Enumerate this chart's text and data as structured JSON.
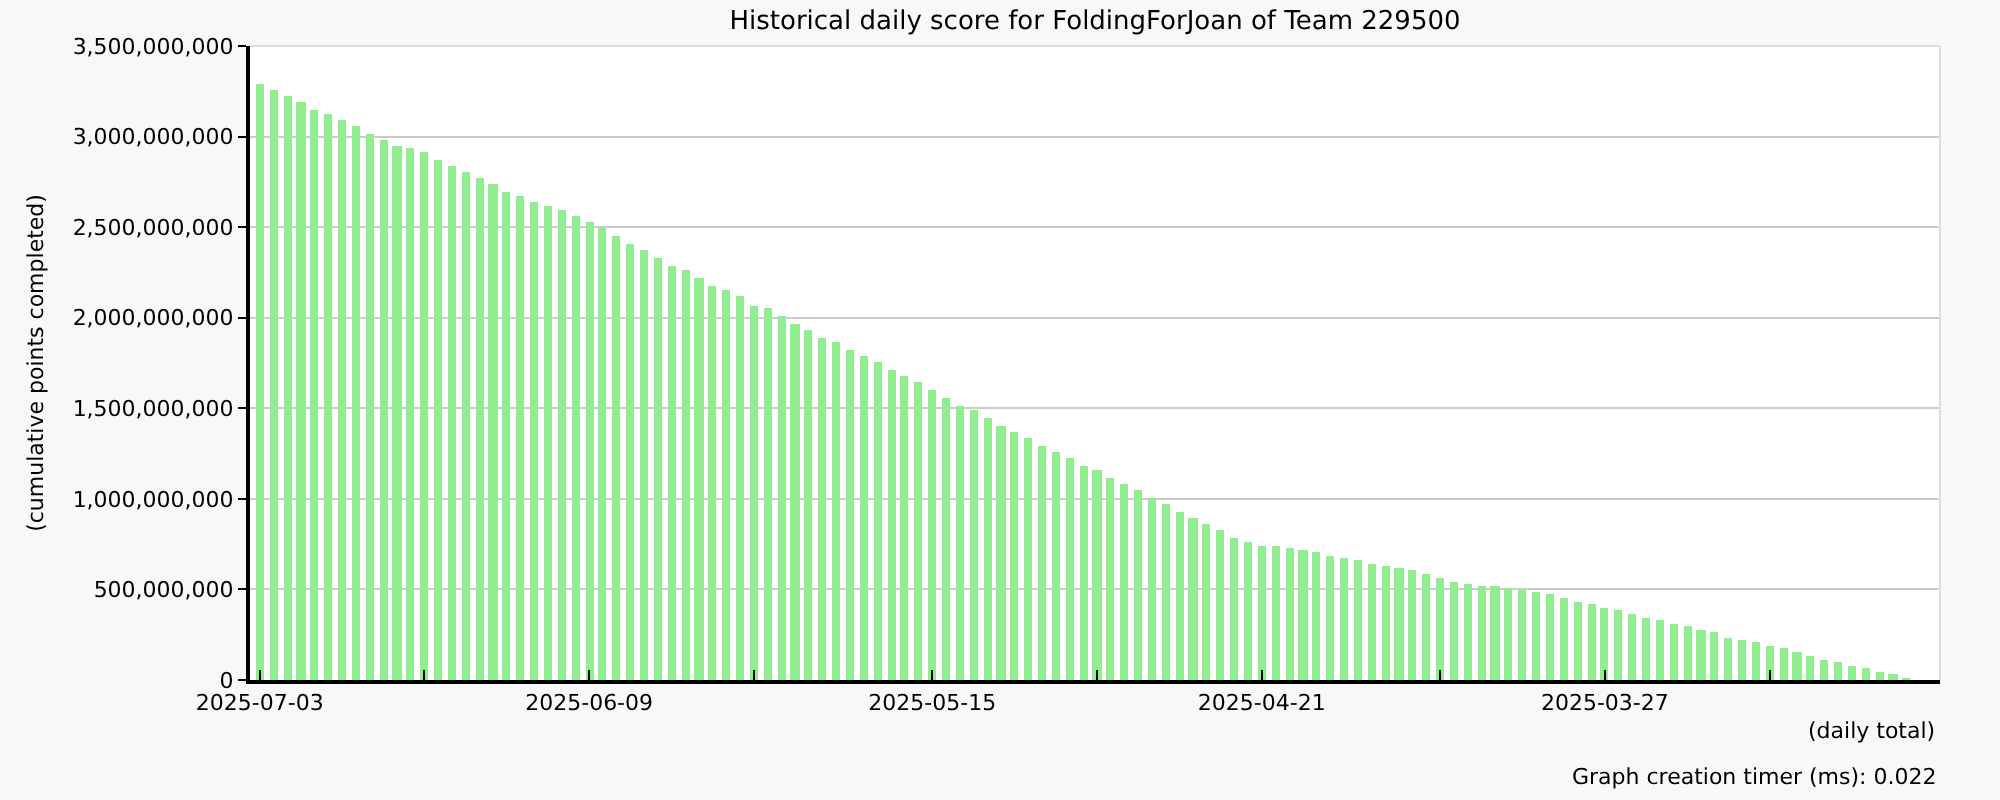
{
  "chart_data": {
    "type": "bar",
    "title": "Historical daily score for FoldingForJoan of Team 229500",
    "xlabel": "(daily total)",
    "ylabel": "(cumulative points completed)",
    "annotations": [
      "Graph creation timer (ms): 0.022"
    ],
    "x": [
      "2025-07-03",
      "2025-07-02",
      "2025-07-01",
      "2025-06-30",
      "2025-06-29",
      "2025-06-28",
      "2025-06-27",
      "2025-06-26",
      "2025-06-25",
      "2025-06-24",
      "2025-06-23",
      "2025-06-22",
      "2025-06-21",
      "2025-06-20",
      "2025-06-19",
      "2025-06-18",
      "2025-06-17",
      "2025-06-16",
      "2025-06-15",
      "2025-06-14",
      "2025-06-13",
      "2025-06-12",
      "2025-06-11",
      "2025-06-10",
      "2025-06-09",
      "2025-06-08",
      "2025-06-07",
      "2025-06-06",
      "2025-06-05",
      "2025-06-04",
      "2025-06-03",
      "2025-06-02",
      "2025-06-01",
      "2025-05-31",
      "2025-05-30",
      "2025-05-29",
      "2025-05-28",
      "2025-05-27",
      "2025-05-26",
      "2025-05-25",
      "2025-05-24",
      "2025-05-23",
      "2025-05-22",
      "2025-05-21",
      "2025-05-20",
      "2025-05-19",
      "2025-05-18",
      "2025-05-17",
      "2025-05-16",
      "2025-05-15",
      "2025-05-14",
      "2025-05-13",
      "2025-05-12",
      "2025-05-11",
      "2025-05-10",
      "2025-05-09",
      "2025-05-08",
      "2025-05-07",
      "2025-05-06",
      "2025-05-05",
      "2025-05-04",
      "2025-05-03",
      "2025-05-02",
      "2025-05-01",
      "2025-04-30",
      "2025-04-29",
      "2025-04-28",
      "2025-04-27",
      "2025-04-26",
      "2025-04-25",
      "2025-04-24",
      "2025-04-23",
      "2025-04-22",
      "2025-04-21",
      "2025-04-20",
      "2025-04-19",
      "2025-04-18",
      "2025-04-17",
      "2025-04-16",
      "2025-04-15",
      "2025-04-14",
      "2025-04-13",
      "2025-04-12",
      "2025-04-11",
      "2025-04-10",
      "2025-04-09",
      "2025-04-08",
      "2025-04-07",
      "2025-04-06",
      "2025-04-05",
      "2025-04-04",
      "2025-04-03",
      "2025-04-02",
      "2025-04-01",
      "2025-03-31",
      "2025-03-30",
      "2025-03-29",
      "2025-03-28",
      "2025-03-27",
      "2025-03-26",
      "2025-03-25",
      "2025-03-24",
      "2025-03-23",
      "2025-03-22",
      "2025-03-21",
      "2025-03-20",
      "2025-03-19",
      "2025-03-18",
      "2025-03-17",
      "2025-03-16",
      "2025-03-15",
      "2025-03-14",
      "2025-03-13",
      "2025-03-12",
      "2025-03-11",
      "2025-03-10",
      "2025-03-09",
      "2025-03-08",
      "2025-03-07",
      "2025-03-06",
      "2025-03-05"
    ],
    "values": [
      3290000000,
      3260000000,
      3220000000,
      3190000000,
      3150000000,
      3125000000,
      3090000000,
      3060000000,
      3015000000,
      2980000000,
      2950000000,
      2940000000,
      2915000000,
      2870000000,
      2840000000,
      2805000000,
      2770000000,
      2740000000,
      2695000000,
      2670000000,
      2640000000,
      2620000000,
      2600000000,
      2565000000,
      2530000000,
      2490000000,
      2455000000,
      2410000000,
      2370000000,
      2330000000,
      2290000000,
      2260000000,
      2215000000,
      2180000000,
      2150000000,
      2115000000,
      2070000000,
      2050000000,
      2015000000,
      1970000000,
      1935000000,
      1890000000,
      1870000000,
      1825000000,
      1790000000,
      1760000000,
      1715000000,
      1680000000,
      1650000000,
      1605000000,
      1560000000,
      1515000000,
      1490000000,
      1450000000,
      1405000000,
      1370000000,
      1340000000,
      1295000000,
      1260000000,
      1225000000,
      1180000000,
      1160000000,
      1115000000,
      1080000000,
      1050000000,
      1000000000,
      970000000,
      925000000,
      890000000,
      860000000,
      825000000,
      780000000,
      760000000,
      740000000,
      740000000,
      725000000,
      715000000,
      705000000,
      690000000,
      670000000,
      660000000,
      640000000,
      625000000,
      615000000,
      605000000,
      580000000,
      560000000,
      545000000,
      530000000,
      520000000,
      520000000,
      510000000,
      500000000,
      490000000,
      470000000,
      455000000,
      435000000,
      420000000,
      400000000,
      390000000,
      365000000,
      345000000,
      333000000,
      310000000,
      300000000,
      280000000,
      265000000,
      233000000,
      222000000,
      210000000,
      190000000,
      178000000,
      155000000,
      133000000,
      110000000,
      100000000,
      78000000,
      67000000,
      44000000,
      33000000,
      11000000
    ],
    "color": "#90ee90",
    "xlim": [
      "2025-07-03T17:00",
      "2025-03-02T14:00"
    ],
    "xticks": [
      {
        "value": "2025-07-03",
        "label": "2025-07-03"
      },
      {
        "value": "2025-06-21",
        "label": null
      },
      {
        "value": "2025-06-09",
        "label": "2025-06-09"
      },
      {
        "value": "2025-05-28",
        "label": null
      },
      {
        "value": "2025-05-15",
        "label": "2025-05-15"
      },
      {
        "value": "2025-05-03",
        "label": null
      },
      {
        "value": "2025-04-21",
        "label": "2025-04-21"
      },
      {
        "value": "2025-04-08",
        "label": null
      },
      {
        "value": "2025-03-27",
        "label": "2025-03-27"
      },
      {
        "value": "2025-03-15",
        "label": null
      }
    ],
    "ylim": [
      0,
      3500000000
    ],
    "yticks": [
      {
        "value": 0,
        "label": "0"
      },
      {
        "value": 500000000,
        "label": "500,000,000"
      },
      {
        "value": 1000000000,
        "label": "1,000,000,000"
      },
      {
        "value": 1500000000,
        "label": "1,500,000,000"
      },
      {
        "value": 2000000000,
        "label": "2,000,000,000"
      },
      {
        "value": 2500000000,
        "label": "2,500,000,000"
      },
      {
        "value": 3000000000,
        "label": "3,000,000,000"
      },
      {
        "value": 3500000000,
        "label": "3,500,000,000"
      }
    ],
    "grid": "y"
  }
}
